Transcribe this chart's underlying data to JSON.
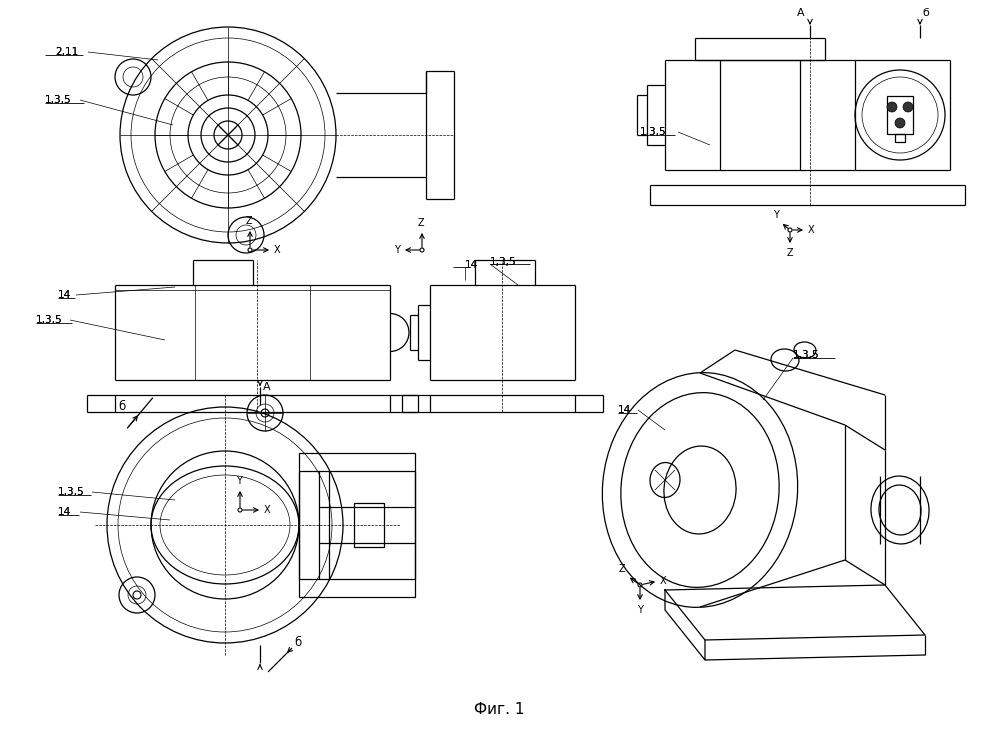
{
  "bg": "#ffffff",
  "lc": "#000000",
  "lw": 0.9,
  "tlw": 0.5,
  "fig_caption": "Фиг. 1",
  "labels": {
    "v1_211": "2,11",
    "v1_135": "1,3,5",
    "v2_14": "14",
    "v2_135": "1,3,5",
    "v3_14": "14",
    "v3_135": "1,3,5",
    "v4_135": "1,3,5",
    "v4_A": "A",
    "v4_b": "б",
    "v5_135": "1,3,5",
    "v5_14": "14",
    "v5_b_tl": "б",
    "v5_b_br": "б",
    "v5_A": "А",
    "v6_135": "1,3,5",
    "v6_14": "14",
    "ax_X": "X",
    "ax_Y": "Y",
    "ax_Z": "Z"
  }
}
